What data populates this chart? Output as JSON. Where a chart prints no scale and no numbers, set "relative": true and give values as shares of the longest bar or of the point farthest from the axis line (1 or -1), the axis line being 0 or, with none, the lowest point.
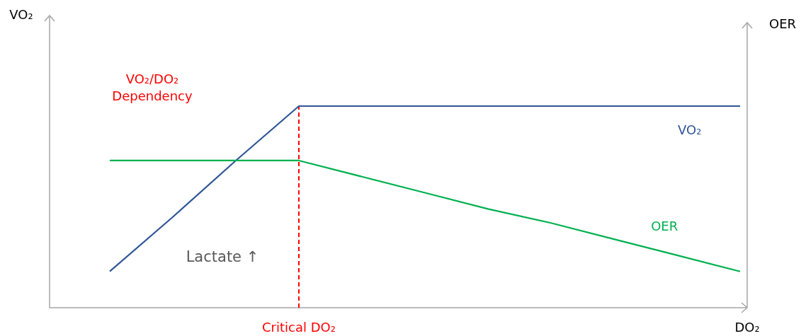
{
  "chart_data": {
    "type": "line",
    "relative": true,
    "xlabel": "DO₂",
    "categories": [
      null,
      null,
      null,
      null,
      null,
      null,
      null,
      null,
      null,
      null,
      null
    ],
    "series": [
      {
        "name": "VO₂",
        "color": "#2f5597",
        "values": [
          0.18,
          0.45,
          0.73,
          1,
          1,
          1,
          1,
          1,
          1,
          1,
          1
        ]
      },
      {
        "name": "OER",
        "color": "#00b050",
        "values": [
          0.73,
          0.73,
          0.73,
          0.73,
          0.65,
          0.57,
          0.49,
          0.42,
          0.34,
          0.26,
          0.18
        ]
      }
    ],
    "annotations": [
      "VO₂",
      "OER",
      "VO₂/DO₂\nDependency",
      "Lactate ↑",
      "Critical DO₂"
    ],
    "marker": "none",
    "line_style": "solid"
  }
}
